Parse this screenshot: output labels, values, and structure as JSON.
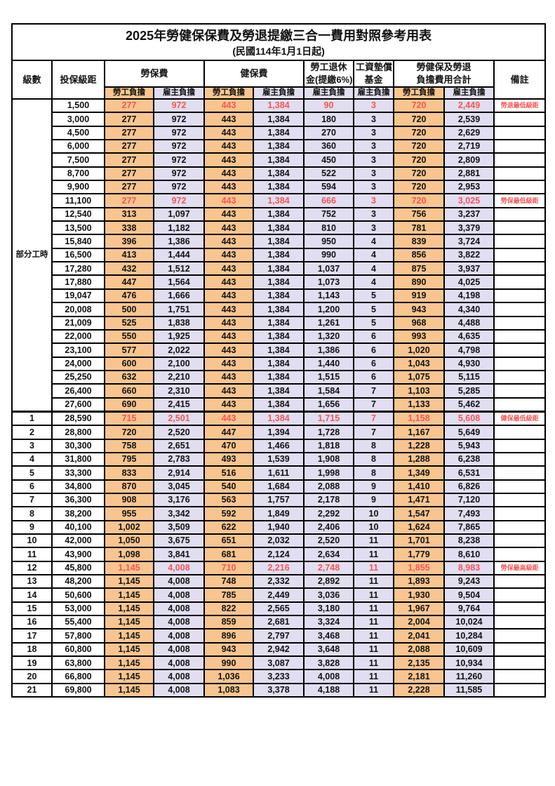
{
  "title": "2025年勞健保保費及勞退提繳三合一費用對照參考用表",
  "subtitle": "(民國114年1月1日起)",
  "colors": {
    "employee_bg": "#F8C58F",
    "employer_bg": "#E0DEF0",
    "highlight_text": "#F85555"
  },
  "header": {
    "level": "級數",
    "bracket": "投保級距",
    "labor_insurance": "勞保費",
    "health_insurance": "健保費",
    "pension_lines": [
      "勞工退休",
      "金(提繳6%)"
    ],
    "wage_fund_lines": [
      "工資墊償",
      "基金"
    ],
    "total_lines": [
      "勞健保及勞退",
      "負擔費用合計"
    ],
    "remark": "備註",
    "employee": "勞工負擔",
    "employer": "雇主負擔"
  },
  "parttime_label": "部分工時",
  "parttime_span": 23,
  "rows": [
    {
      "level": "",
      "bracket": "1,500",
      "values": [
        "277",
        "972",
        "443",
        "1,384",
        "90",
        "3",
        "720",
        "2,449"
      ],
      "remark": "勞退最低級距",
      "red": true
    },
    {
      "level": "",
      "bracket": "3,000",
      "values": [
        "277",
        "972",
        "443",
        "1,384",
        "180",
        "3",
        "720",
        "2,539"
      ],
      "remark": "",
      "red": false
    },
    {
      "level": "",
      "bracket": "4,500",
      "values": [
        "277",
        "972",
        "443",
        "1,384",
        "270",
        "3",
        "720",
        "2,629"
      ],
      "remark": "",
      "red": false
    },
    {
      "level": "",
      "bracket": "6,000",
      "values": [
        "277",
        "972",
        "443",
        "1,384",
        "360",
        "3",
        "720",
        "2,719"
      ],
      "remark": "",
      "red": false
    },
    {
      "level": "",
      "bracket": "7,500",
      "values": [
        "277",
        "972",
        "443",
        "1,384",
        "450",
        "3",
        "720",
        "2,809"
      ],
      "remark": "",
      "red": false
    },
    {
      "level": "",
      "bracket": "8,700",
      "values": [
        "277",
        "972",
        "443",
        "1,384",
        "522",
        "3",
        "720",
        "2,881"
      ],
      "remark": "",
      "red": false
    },
    {
      "level": "",
      "bracket": "9,900",
      "values": [
        "277",
        "972",
        "443",
        "1,384",
        "594",
        "3",
        "720",
        "2,953"
      ],
      "remark": "",
      "red": false
    },
    {
      "level": "",
      "bracket": "11,100",
      "values": [
        "277",
        "972",
        "443",
        "1,384",
        "666",
        "3",
        "720",
        "3,025"
      ],
      "remark": "勞保最低級距",
      "red": true
    },
    {
      "level": "",
      "bracket": "12,540",
      "values": [
        "313",
        "1,097",
        "443",
        "1,384",
        "752",
        "3",
        "756",
        "3,237"
      ],
      "remark": "",
      "red": false
    },
    {
      "level": "",
      "bracket": "13,500",
      "values": [
        "338",
        "1,182",
        "443",
        "1,384",
        "810",
        "3",
        "781",
        "3,379"
      ],
      "remark": "",
      "red": false
    },
    {
      "level": "",
      "bracket": "15,840",
      "values": [
        "396",
        "1,386",
        "443",
        "1,384",
        "950",
        "4",
        "839",
        "3,724"
      ],
      "remark": "",
      "red": false
    },
    {
      "level": "",
      "bracket": "16,500",
      "values": [
        "413",
        "1,444",
        "443",
        "1,384",
        "990",
        "4",
        "856",
        "3,822"
      ],
      "remark": "",
      "red": false
    },
    {
      "level": "",
      "bracket": "17,280",
      "values": [
        "432",
        "1,512",
        "443",
        "1,384",
        "1,037",
        "4",
        "875",
        "3,937"
      ],
      "remark": "",
      "red": false
    },
    {
      "level": "",
      "bracket": "17,880",
      "values": [
        "447",
        "1,564",
        "443",
        "1,384",
        "1,073",
        "4",
        "890",
        "4,025"
      ],
      "remark": "",
      "red": false
    },
    {
      "level": "",
      "bracket": "19,047",
      "values": [
        "476",
        "1,666",
        "443",
        "1,384",
        "1,143",
        "5",
        "919",
        "4,198"
      ],
      "remark": "",
      "red": false
    },
    {
      "level": "",
      "bracket": "20,008",
      "values": [
        "500",
        "1,751",
        "443",
        "1,384",
        "1,200",
        "5",
        "943",
        "4,340"
      ],
      "remark": "",
      "red": false
    },
    {
      "level": "",
      "bracket": "21,009",
      "values": [
        "525",
        "1,838",
        "443",
        "1,384",
        "1,261",
        "5",
        "968",
        "4,488"
      ],
      "remark": "",
      "red": false
    },
    {
      "level": "",
      "bracket": "22,000",
      "values": [
        "550",
        "1,925",
        "443",
        "1,384",
        "1,320",
        "6",
        "993",
        "4,635"
      ],
      "remark": "",
      "red": false
    },
    {
      "level": "",
      "bracket": "23,100",
      "values": [
        "577",
        "2,022",
        "443",
        "1,384",
        "1,386",
        "6",
        "1,020",
        "4,798"
      ],
      "remark": "",
      "red": false
    },
    {
      "level": "",
      "bracket": "24,000",
      "values": [
        "600",
        "2,100",
        "443",
        "1,384",
        "1,440",
        "6",
        "1,043",
        "4,930"
      ],
      "remark": "",
      "red": false
    },
    {
      "level": "",
      "bracket": "25,250",
      "values": [
        "632",
        "2,210",
        "443",
        "1,384",
        "1,515",
        "6",
        "1,075",
        "5,115"
      ],
      "remark": "",
      "red": false
    },
    {
      "level": "",
      "bracket": "26,400",
      "values": [
        "660",
        "2,310",
        "443",
        "1,384",
        "1,584",
        "7",
        "1,103",
        "5,285"
      ],
      "remark": "",
      "red": false
    },
    {
      "level": "",
      "bracket": "27,600",
      "values": [
        "690",
        "2,415",
        "443",
        "1,384",
        "1,656",
        "7",
        "1,133",
        "5,462"
      ],
      "remark": "",
      "red": false
    },
    {
      "level": "1",
      "bracket": "28,590",
      "values": [
        "715",
        "2,501",
        "443",
        "1,384",
        "1,715",
        "7",
        "1,158",
        "5,608"
      ],
      "remark": "健保最低級距",
      "red": true
    },
    {
      "level": "2",
      "bracket": "28,800",
      "values": [
        "720",
        "2,520",
        "447",
        "1,394",
        "1,728",
        "7",
        "1,167",
        "5,649"
      ],
      "remark": "",
      "red": false
    },
    {
      "level": "3",
      "bracket": "30,300",
      "values": [
        "758",
        "2,651",
        "470",
        "1,466",
        "1,818",
        "8",
        "1,228",
        "5,943"
      ],
      "remark": "",
      "red": false
    },
    {
      "level": "4",
      "bracket": "31,800",
      "values": [
        "795",
        "2,783",
        "493",
        "1,539",
        "1,908",
        "8",
        "1,288",
        "6,238"
      ],
      "remark": "",
      "red": false
    },
    {
      "level": "5",
      "bracket": "33,300",
      "values": [
        "833",
        "2,914",
        "516",
        "1,611",
        "1,998",
        "8",
        "1,349",
        "6,531"
      ],
      "remark": "",
      "red": false
    },
    {
      "level": "6",
      "bracket": "34,800",
      "values": [
        "870",
        "3,045",
        "540",
        "1,684",
        "2,088",
        "9",
        "1,410",
        "6,826"
      ],
      "remark": "",
      "red": false
    },
    {
      "level": "7",
      "bracket": "36,300",
      "values": [
        "908",
        "3,176",
        "563",
        "1,757",
        "2,178",
        "9",
        "1,471",
        "7,120"
      ],
      "remark": "",
      "red": false
    },
    {
      "level": "8",
      "bracket": "38,200",
      "values": [
        "955",
        "3,342",
        "592",
        "1,849",
        "2,292",
        "10",
        "1,547",
        "7,493"
      ],
      "remark": "",
      "red": false
    },
    {
      "level": "9",
      "bracket": "40,100",
      "values": [
        "1,002",
        "3,509",
        "622",
        "1,940",
        "2,406",
        "10",
        "1,624",
        "7,865"
      ],
      "remark": "",
      "red": false
    },
    {
      "level": "10",
      "bracket": "42,000",
      "values": [
        "1,050",
        "3,675",
        "651",
        "2,032",
        "2,520",
        "11",
        "1,701",
        "8,238"
      ],
      "remark": "",
      "red": false
    },
    {
      "level": "11",
      "bracket": "43,900",
      "values": [
        "1,098",
        "3,841",
        "681",
        "2,124",
        "2,634",
        "11",
        "1,779",
        "8,610"
      ],
      "remark": "",
      "red": false
    },
    {
      "level": "12",
      "bracket": "45,800",
      "values": [
        "1,145",
        "4,008",
        "710",
        "2,216",
        "2,748",
        "11",
        "1,855",
        "8,983"
      ],
      "remark": "勞保最高級距",
      "red": true
    },
    {
      "level": "13",
      "bracket": "48,200",
      "values": [
        "1,145",
        "4,008",
        "748",
        "2,332",
        "2,892",
        "11",
        "1,893",
        "9,243"
      ],
      "remark": "",
      "red": false
    },
    {
      "level": "14",
      "bracket": "50,600",
      "values": [
        "1,145",
        "4,008",
        "785",
        "2,449",
        "3,036",
        "11",
        "1,930",
        "9,504"
      ],
      "remark": "",
      "red": false
    },
    {
      "level": "15",
      "bracket": "53,000",
      "values": [
        "1,145",
        "4,008",
        "822",
        "2,565",
        "3,180",
        "11",
        "1,967",
        "9,764"
      ],
      "remark": "",
      "red": false
    },
    {
      "level": "16",
      "bracket": "55,400",
      "values": [
        "1,145",
        "4,008",
        "859",
        "2,681",
        "3,324",
        "11",
        "2,004",
        "10,024"
      ],
      "remark": "",
      "red": false
    },
    {
      "level": "17",
      "bracket": "57,800",
      "values": [
        "1,145",
        "4,008",
        "896",
        "2,797",
        "3,468",
        "11",
        "2,041",
        "10,284"
      ],
      "remark": "",
      "red": false
    },
    {
      "level": "18",
      "bracket": "60,800",
      "values": [
        "1,145",
        "4,008",
        "943",
        "2,942",
        "3,648",
        "11",
        "2,088",
        "10,609"
      ],
      "remark": "",
      "red": false
    },
    {
      "level": "19",
      "bracket": "63,800",
      "values": [
        "1,145",
        "4,008",
        "990",
        "3,087",
        "3,828",
        "11",
        "2,135",
        "10,934"
      ],
      "remark": "",
      "red": false
    },
    {
      "level": "20",
      "bracket": "66,800",
      "values": [
        "1,145",
        "4,008",
        "1,036",
        "3,233",
        "4,008",
        "11",
        "2,181",
        "11,260"
      ],
      "remark": "",
      "red": false
    },
    {
      "level": "21",
      "bracket": "69,800",
      "values": [
        "1,145",
        "4,008",
        "1,083",
        "3,378",
        "4,188",
        "11",
        "2,228",
        "11,585"
      ],
      "remark": "",
      "red": false
    }
  ]
}
